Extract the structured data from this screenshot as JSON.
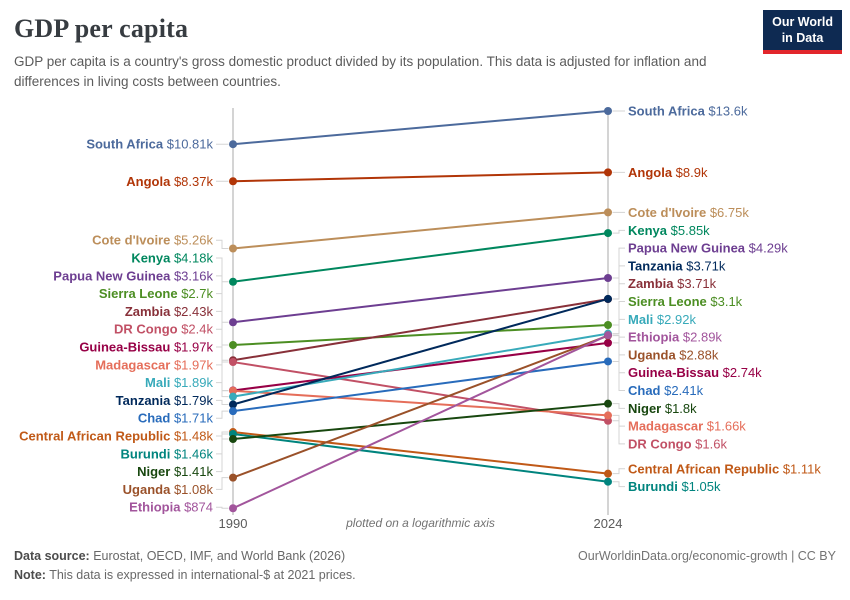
{
  "header": {
    "title": "GDP per capita",
    "subtitle": "GDP per capita is a country's gross domestic product divided by its population. This data is adjusted for inflation and differences in living costs between countries.",
    "logo_line1": "Our World",
    "logo_line2": "in Data"
  },
  "chart_data": {
    "type": "slope",
    "scale": "log",
    "x_labels": [
      "1990",
      "2024"
    ],
    "axis_note": "plotted on a logarithmic axis",
    "unit": "international-$ at 2021 prices",
    "series": [
      {
        "name": "South Africa",
        "color": "#4C6A9C",
        "v1990": 10810,
        "v2024": 13600,
        "label_1990": "$10.81k",
        "label_2024": "$13.6k"
      },
      {
        "name": "Angola",
        "color": "#B13507",
        "v1990": 8370,
        "v2024": 8900,
        "label_1990": "$8.37k",
        "label_2024": "$8.9k"
      },
      {
        "name": "Cote d'Ivoire",
        "color": "#BC8E5A",
        "v1990": 5260,
        "v2024": 6750,
        "label_1990": "$5.26k",
        "label_2024": "$6.75k"
      },
      {
        "name": "Kenya",
        "color": "#00875E",
        "v1990": 4180,
        "v2024": 5850,
        "label_1990": "$4.18k",
        "label_2024": "$5.85k"
      },
      {
        "name": "Papua New Guinea",
        "color": "#6D3E91",
        "v1990": 3160,
        "v2024": 4290,
        "label_1990": "$3.16k",
        "label_2024": "$4.29k"
      },
      {
        "name": "Sierra Leone",
        "color": "#4C8E23",
        "v1990": 2700,
        "v2024": 3100,
        "label_1990": "$2.7k",
        "label_2024": "$3.1k"
      },
      {
        "name": "Zambia",
        "color": "#883039",
        "v1990": 2430,
        "v2024": 3708,
        "label_1990": "$2.43k",
        "label_2024": "$3.71k"
      },
      {
        "name": "DR Congo",
        "color": "#C15065",
        "v1990": 2400,
        "v2024": 1600,
        "label_1990": "$2.4k",
        "label_2024": "$1.6k"
      },
      {
        "name": "Guinea-Bissau",
        "color": "#970046",
        "v1990": 1972,
        "v2024": 2740,
        "label_1990": "$1.97k",
        "label_2024": "$2.74k"
      },
      {
        "name": "Madagascar",
        "color": "#E56E5A",
        "v1990": 1968,
        "v2024": 1660,
        "label_1990": "$1.97k",
        "label_2024": "$1.66k"
      },
      {
        "name": "Mali",
        "color": "#38AABA",
        "v1990": 1890,
        "v2024": 2920,
        "label_1990": "$1.89k",
        "label_2024": "$2.92k"
      },
      {
        "name": "Tanzania",
        "color": "#00295B",
        "v1990": 1790,
        "v2024": 3712,
        "label_1990": "$1.79k",
        "label_2024": "$3.71k"
      },
      {
        "name": "Chad",
        "color": "#286BBB",
        "v1990": 1710,
        "v2024": 2410,
        "label_1990": "$1.71k",
        "label_2024": "$2.41k"
      },
      {
        "name": "Central African Republic",
        "color": "#C05917",
        "v1990": 1480,
        "v2024": 1110,
        "label_1990": "$1.48k",
        "label_2024": "$1.11k"
      },
      {
        "name": "Burundi",
        "color": "#00847E",
        "v1990": 1460,
        "v2024": 1050,
        "label_1990": "$1.46k",
        "label_2024": "$1.05k"
      },
      {
        "name": "Niger",
        "color": "#18470F",
        "v1990": 1410,
        "v2024": 1800,
        "label_1990": "$1.41k",
        "label_2024": "$1.8k"
      },
      {
        "name": "Uganda",
        "color": "#9A5129",
        "v1990": 1080,
        "v2024": 2880,
        "label_1990": "$1.08k",
        "label_2024": "$2.88k"
      },
      {
        "name": "Ethiopia",
        "color": "#A2559C",
        "v1990": 874,
        "v2024": 2890,
        "label_1990": "$874",
        "label_2024": "$2.89k"
      }
    ]
  },
  "footer": {
    "source_label": "Data source:",
    "source_text": " Eurostat, OECD, IMF, and World Bank (2026)",
    "note_label": "Note:",
    "note_text": " This data is expressed in international-$ at 2021 prices.",
    "link": "OurWorldinData.org/economic-growth | CC BY"
  }
}
